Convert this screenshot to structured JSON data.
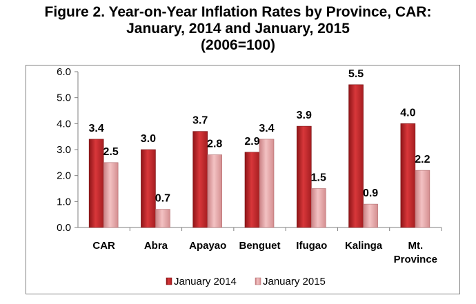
{
  "title": {
    "line1": "Figure 2. Year-on-Year Inflation Rates by Province, CAR:",
    "line2": "January, 2014 and January, 2015",
    "line3": "(2006=100)"
  },
  "colors": {
    "january_2014": "#c0282b",
    "january_2015": "#e8a3a4",
    "axis": "#7f7f7f"
  },
  "chart_data": {
    "type": "bar",
    "title": "Figure 2. Year-on-Year Inflation Rates by Province, CAR: January, 2014 and January, 2015 (2006=100)",
    "categories": [
      "CAR",
      "Abra",
      "Apayao",
      "Benguet",
      "Ifugao",
      "Kalinga",
      "Mt. Province"
    ],
    "category_lines": [
      [
        "CAR"
      ],
      [
        "Abra"
      ],
      [
        "Apayao"
      ],
      [
        "Benguet"
      ],
      [
        "Ifugao"
      ],
      [
        "Kalinga"
      ],
      [
        "Mt.",
        "Province"
      ]
    ],
    "series": [
      {
        "name": "January 2014",
        "values": [
          3.4,
          3.0,
          3.7,
          2.9,
          3.9,
          5.5,
          4.0
        ]
      },
      {
        "name": "January 2015",
        "values": [
          2.5,
          0.7,
          2.8,
          3.4,
          1.5,
          0.9,
          2.2
        ]
      }
    ],
    "y_ticks": [
      "0.0",
      "1.0",
      "2.0",
      "3.0",
      "4.0",
      "5.0",
      "6.0"
    ],
    "ylim": [
      0,
      6
    ],
    "grid": false,
    "legend_position": "bottom",
    "xlabel": "",
    "ylabel": ""
  }
}
